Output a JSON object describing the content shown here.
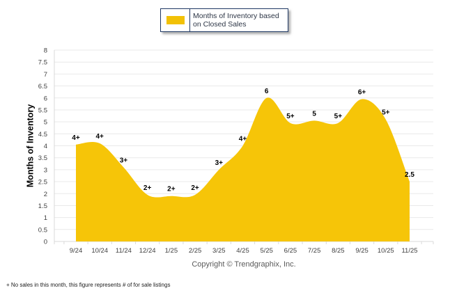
{
  "chart_data": {
    "type": "area",
    "title": "",
    "series_name": "Months of Inventory based on Closed Sales",
    "categories": [
      "9/24",
      "10/24",
      "11/24",
      "12/24",
      "1/25",
      "2/25",
      "3/25",
      "4/25",
      "5/25",
      "6/25",
      "7/25",
      "8/25",
      "9/25",
      "10/25",
      "11/25"
    ],
    "values": [
      4.05,
      4.1,
      3.1,
      1.95,
      1.9,
      1.95,
      3.0,
      4.0,
      6.0,
      4.95,
      5.05,
      4.95,
      5.95,
      5.1,
      2.5
    ],
    "point_labels": [
      "4+",
      "4+",
      "3+",
      "2+",
      "2+",
      "2+",
      "3+",
      "4+",
      "6",
      "5+",
      "5",
      "5+",
      "6+",
      "5+",
      "2.5"
    ],
    "xlabel": "",
    "ylabel": "Months of Inventory",
    "ylim": [
      0,
      8
    ],
    "ytick_step": 0.5,
    "grid": true,
    "legend_position": "top-center",
    "smooth": true
  },
  "legend": {
    "label_lines": [
      "Months of Inventory based",
      "on Closed Sales"
    ],
    "swatch_color": "#F2C106",
    "border_color": "#1F3864"
  },
  "footer": {
    "copyright": "Copyright © Trendgraphix, Inc.",
    "note": "+  No sales in this month, this figure represents # of for sale listings"
  },
  "colors": {
    "area": "#F6C508",
    "grid": "#E9E9E9",
    "axis": "#D9D9D9",
    "tick_text": "#404040",
    "point_label_text": "#000000",
    "copyright_text": "#595959"
  }
}
